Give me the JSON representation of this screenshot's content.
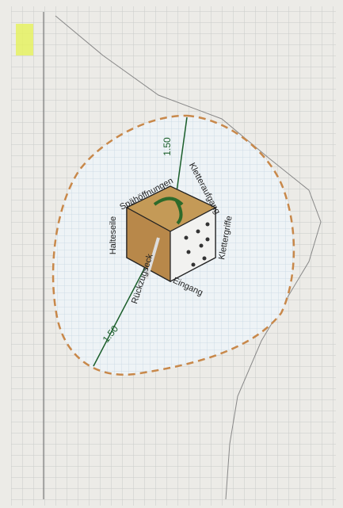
{
  "drawing": {
    "labels": {
      "top": "Spähöffnungen",
      "top_right": "Kletteraufgang",
      "left": "Halteseile",
      "right": "Klettergriffe",
      "bottom_left": "Rückzugseck",
      "bottom": "Eingang"
    },
    "dimensions": [
      "1.50",
      "1.50"
    ]
  }
}
